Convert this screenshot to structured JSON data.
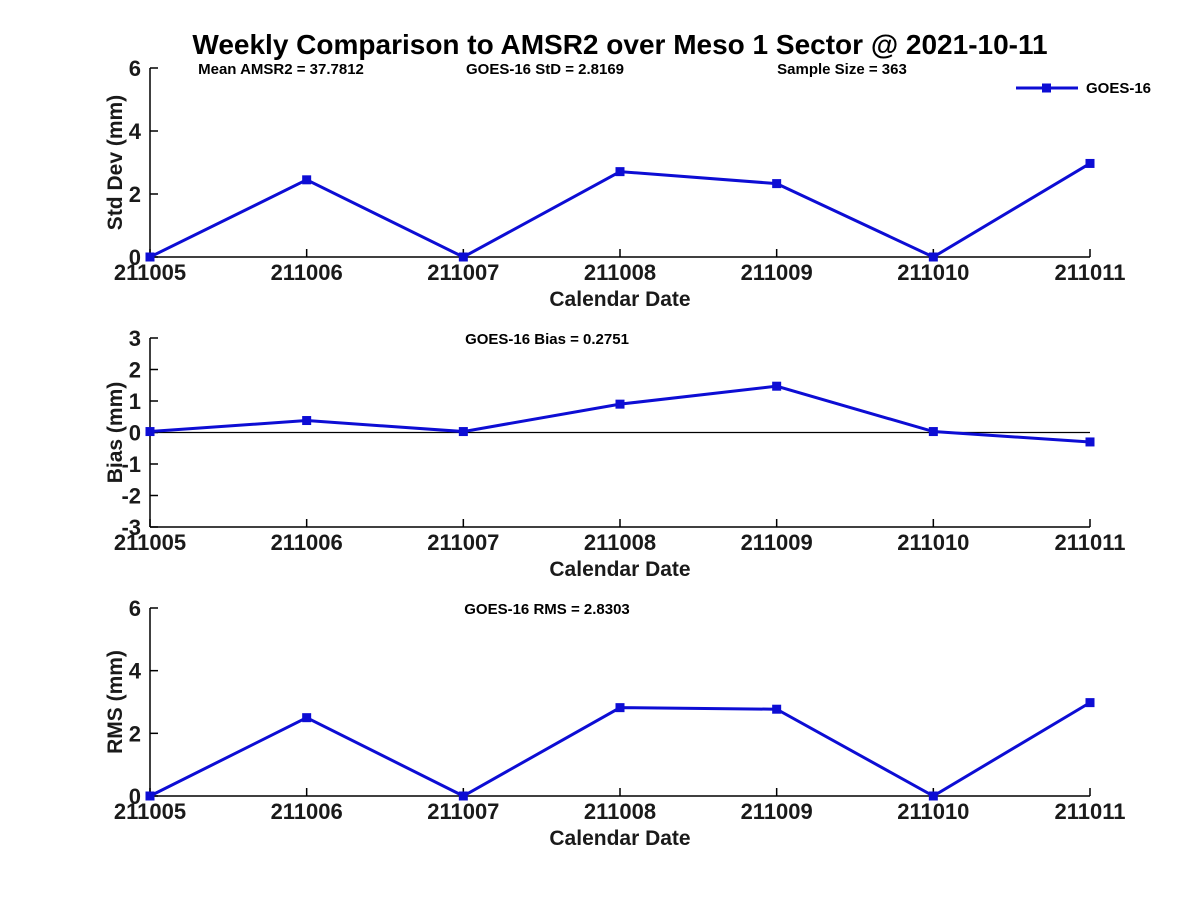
{
  "page": {
    "title": "Weekly Comparison to AMSR2 over Meso 1 Sector @ 2021-10-11",
    "background": "#ffffff",
    "legend": {
      "label": "GOES-16",
      "marker": "filled-square",
      "position": "top-right"
    },
    "colors": {
      "series": "#0d0dd4",
      "axis": "#000000",
      "tick_label": "#1a1a1a",
      "zero_line": "#000000"
    }
  },
  "chart_data": [
    {
      "type": "line",
      "categories": [
        "211005",
        "211006",
        "211007",
        "211008",
        "211009",
        "211010",
        "211011"
      ],
      "series": [
        {
          "name": "GOES-16",
          "values": [
            0,
            2.45,
            0,
            2.71,
            2.33,
            0,
            2.97
          ]
        }
      ],
      "title": "",
      "xlabel": "Calendar Date",
      "ylabel": "Std Dev (mm)",
      "ylim": [
        0,
        6
      ],
      "yticks": [
        0,
        2,
        4,
        6
      ],
      "grid": false,
      "zero_line": false,
      "legend_visible": true,
      "annotations": [
        {
          "text": "Mean AMSR2 = 37.7812",
          "x": 281
        },
        {
          "text": "GOES-16 StD = 2.8169",
          "x": 545
        },
        {
          "text": "Sample Size = 363",
          "x": 842
        }
      ]
    },
    {
      "type": "line",
      "categories": [
        "211005",
        "211006",
        "211007",
        "211008",
        "211009",
        "211010",
        "211011"
      ],
      "series": [
        {
          "name": "GOES-16",
          "values": [
            0.03,
            0.38,
            0.03,
            0.9,
            1.47,
            0.03,
            -0.3
          ]
        }
      ],
      "title": "",
      "xlabel": "Calendar Date",
      "ylabel": "Bias (mm)",
      "ylim": [
        -3,
        3
      ],
      "yticks": [
        -3,
        -2,
        -1,
        0,
        1,
        2,
        3
      ],
      "grid": false,
      "zero_line": true,
      "legend_visible": false,
      "annotations": [
        {
          "text": "GOES-16 Bias  = 0.2751",
          "x": 547
        }
      ]
    },
    {
      "type": "line",
      "categories": [
        "211005",
        "211006",
        "211007",
        "211008",
        "211009",
        "211010",
        "211011"
      ],
      "series": [
        {
          "name": "GOES-16",
          "values": [
            0,
            2.5,
            0,
            2.82,
            2.77,
            0,
            2.98
          ]
        }
      ],
      "title": "",
      "xlabel": "Calendar Date",
      "ylabel": "RMS (mm)",
      "ylim": [
        0,
        6
      ],
      "yticks": [
        0,
        2,
        4,
        6
      ],
      "grid": false,
      "zero_line": false,
      "legend_visible": false,
      "annotations": [
        {
          "text": "GOES-16 RMS = 2.8303",
          "x": 547
        }
      ]
    }
  ]
}
